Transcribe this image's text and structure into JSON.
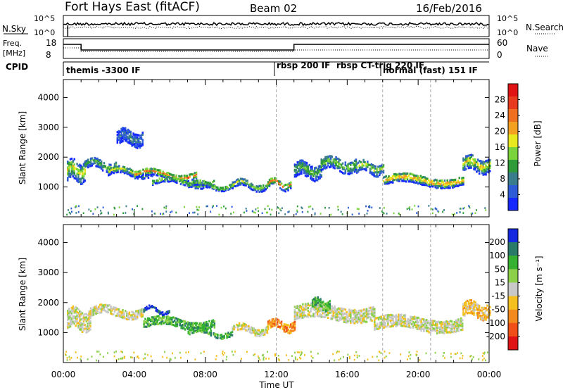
{
  "header": {
    "station": "Fort Hays East (fitACF)",
    "beam": "Beam 02",
    "date": "16/Feb/2016"
  },
  "noise_panel": {
    "left_label": "N.Sky",
    "right_label": "N.Search",
    "left_ticks": [
      "10^5",
      "10^0"
    ],
    "right_ticks": [
      "10^5",
      "10^0"
    ]
  },
  "freq_panel": {
    "left_label_line1": "Freq.",
    "left_label_line2": "[MHz]",
    "right_label": "Nave",
    "left_ticks": [
      "18",
      "8"
    ],
    "right_ticks": [
      "60",
      "0"
    ]
  },
  "cpid": {
    "label": "CPID",
    "modes": [
      "themis -3300 IF",
      "rbsp 200 IF",
      "rbsp CT-trig 220 IF",
      "normal (fast) 151 IF"
    ]
  },
  "x_axis": {
    "label": "Time UT",
    "ticks": [
      "00:00",
      "04:00",
      "08:00",
      "12:00",
      "16:00",
      "20:00",
      "00:00"
    ]
  },
  "chart_data": [
    {
      "type": "heatmap",
      "name": "power",
      "ylabel": "Slant Range [km]",
      "yticks": [
        1000,
        2000,
        3000,
        4000
      ],
      "ylim": [
        0,
        4600
      ],
      "xlim": [
        0,
        24
      ],
      "colorbar_label": "Power [dB]",
      "colorbar_ticks": [
        "4",
        "8",
        "12",
        "16",
        "20",
        "24",
        "28"
      ],
      "colors": [
        "#1428ff",
        "#2e5bd6",
        "#3a7d8c",
        "#2e9a3a",
        "#7ad33a",
        "#e8e81e",
        "#f4a020",
        "#f07020",
        "#e83a1e",
        "#e01414"
      ],
      "bands": [
        {
          "t0": 0.2,
          "t1": 1.2,
          "center": 1600,
          "width": 700,
          "level": 0.6
        },
        {
          "t0": 1.2,
          "t1": 3.0,
          "center": 1800,
          "width": 350,
          "level": 0.45
        },
        {
          "t0": 2.5,
          "t1": 5.0,
          "center": 1550,
          "width": 280,
          "level": 0.5
        },
        {
          "t0": 4.0,
          "t1": 7.5,
          "center": 1450,
          "width": 260,
          "level": 0.75
        },
        {
          "t0": 5.0,
          "t1": 8.5,
          "center": 1200,
          "width": 220,
          "level": 0.55
        },
        {
          "t0": 7.0,
          "t1": 9.5,
          "center": 1100,
          "width": 220,
          "level": 0.5
        },
        {
          "t0": 9.5,
          "t1": 11.5,
          "center": 1100,
          "width": 250,
          "level": 0.45
        },
        {
          "t0": 11.5,
          "t1": 12.8,
          "center": 1150,
          "width": 280,
          "level": 0.7
        },
        {
          "t0": 13.0,
          "t1": 14.5,
          "center": 1600,
          "width": 500,
          "level": 0.4
        },
        {
          "t0": 14.5,
          "t1": 16.5,
          "center": 1800,
          "width": 450,
          "level": 0.45
        },
        {
          "t0": 16.5,
          "t1": 18.0,
          "center": 1700,
          "width": 400,
          "level": 0.5
        },
        {
          "t0": 18.0,
          "t1": 22.5,
          "center": 1250,
          "width": 300,
          "level": 0.75
        },
        {
          "t0": 22.5,
          "t1": 24.0,
          "center": 1800,
          "width": 500,
          "level": 0.6
        },
        {
          "t0": 3.0,
          "t1": 4.5,
          "center": 2700,
          "width": 500,
          "level": 0.2
        }
      ]
    },
    {
      "type": "heatmap",
      "name": "velocity",
      "ylabel": "Slant Range [km]",
      "yticks": [
        1000,
        2000,
        3000,
        4000
      ],
      "ylim": [
        0,
        4600
      ],
      "xlim": [
        0,
        24
      ],
      "colorbar_label": "Velocity [m s⁻¹]",
      "colorbar_ticks": [
        "200",
        "100",
        "50",
        "15",
        "-15",
        "-50",
        "-100",
        "-200"
      ],
      "colors": [
        "#1428e0",
        "#2a7a6a",
        "#36b030",
        "#8cd04a",
        "#c8c8c8",
        "#f4c020",
        "#f48a1e",
        "#f05018",
        "#e01414"
      ],
      "bands": [
        {
          "t0": 0.2,
          "t1": 1.5,
          "center": 1500,
          "width": 700,
          "level": 4
        },
        {
          "t0": 1.5,
          "t1": 4.5,
          "center": 1750,
          "width": 350,
          "level": 4
        },
        {
          "t0": 4.5,
          "t1": 8.5,
          "center": 1350,
          "width": 300,
          "level": 2
        },
        {
          "t0": 7.0,
          "t1": 9.5,
          "center": 1050,
          "width": 220,
          "level": 2
        },
        {
          "t0": 9.5,
          "t1": 11.5,
          "center": 1150,
          "width": 250,
          "level": 4
        },
        {
          "t0": 11.5,
          "t1": 13.0,
          "center": 1300,
          "width": 350,
          "level": 6
        },
        {
          "t0": 13.0,
          "t1": 17.5,
          "center": 1700,
          "width": 500,
          "level": 4
        },
        {
          "t0": 17.5,
          "t1": 22.5,
          "center": 1350,
          "width": 450,
          "level": 4
        },
        {
          "t0": 22.5,
          "t1": 24.0,
          "center": 1800,
          "width": 500,
          "level": 5
        },
        {
          "t0": 4.5,
          "t1": 6.0,
          "center": 1800,
          "width": 150,
          "level": 0
        },
        {
          "t0": 14.0,
          "t1": 15.0,
          "center": 2000,
          "width": 300,
          "level": 2
        }
      ]
    }
  ]
}
